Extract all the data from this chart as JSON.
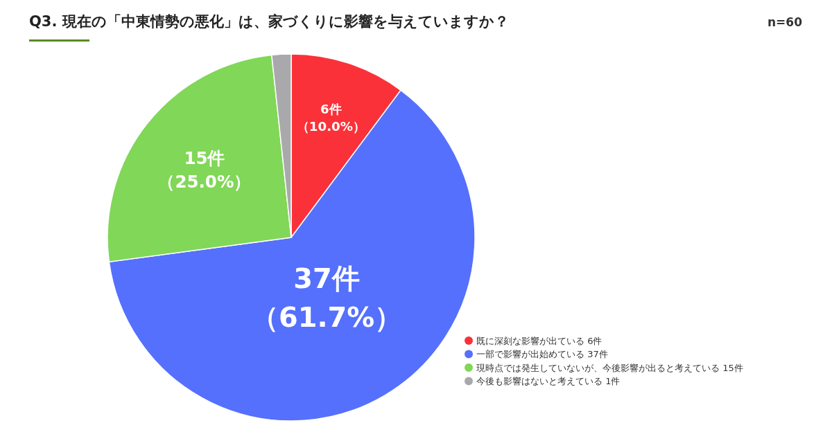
{
  "chart_data": {
    "type": "pie",
    "title": "Q3. 現在の「中東情勢の悪化」は、家づくりに影響を与えていますか？",
    "annotations": [
      "n=60"
    ],
    "categories": [
      "既に深刻な影響が出ている 6件",
      "一部で影響が出始めている 37件",
      "現時点では発生していないが、今後影響が出ると考えている 15件",
      "今後も影響はないと考えている 1件"
    ],
    "values": [
      6,
      37,
      15,
      1
    ],
    "colors": [
      "#fb3139",
      "#5570fd",
      "#81d757",
      "#a9a9ab"
    ],
    "value_labels": [
      "6件（10.0%）",
      "37件（61.7%）",
      "15件（25.0%）",
      null
    ],
    "legend": "bottom right"
  }
}
